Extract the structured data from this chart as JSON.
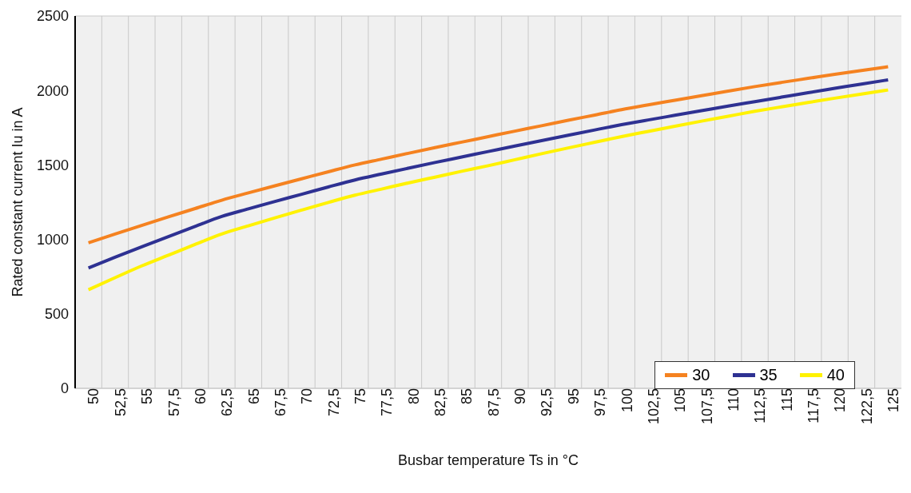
{
  "chart_data": {
    "type": "line",
    "xlabel": "Busbar temperature Ts in °C",
    "ylabel": "Rated constant current Iu in A",
    "categories": [
      "50",
      "52,5",
      "55",
      "57,5",
      "60",
      "62,5",
      "65",
      "67,5",
      "70",
      "72,5",
      "75",
      "77,5",
      "80",
      "82,5",
      "85",
      "87,5",
      "90",
      "92,5",
      "95",
      "97,5",
      "100",
      "102,5",
      "105",
      "107,5",
      "110",
      "112,5",
      "115",
      "117,5",
      "120",
      "122,5",
      "125"
    ],
    "series": [
      {
        "name": "30",
        "color": "#f58220",
        "values": [
          977,
          1036,
          1094,
          1151,
          1207,
          1263,
          1312,
          1360,
          1407,
          1454,
          1500,
          1539,
          1578,
          1616,
          1653,
          1690,
          1727,
          1763,
          1800,
          1835,
          1871,
          1903,
          1934,
          1965,
          1996,
          2026,
          2054,
          2081,
          2108,
          2134,
          2159
        ]
      },
      {
        "name": "35",
        "color": "#2e3192",
        "values": [
          808,
          880,
          950,
          1019,
          1087,
          1154,
          1205,
          1255,
          1303,
          1352,
          1399,
          1439,
          1478,
          1516,
          1553,
          1590,
          1627,
          1663,
          1699,
          1735,
          1770,
          1802,
          1833,
          1864,
          1895,
          1925,
          1955,
          1985,
          2014,
          2043,
          2071
        ]
      },
      {
        "name": "40",
        "color": "#fff200",
        "values": [
          662,
          743,
          822,
          894,
          966,
          1036,
          1091,
          1145,
          1197,
          1248,
          1297,
          1338,
          1379,
          1418,
          1457,
          1495,
          1535,
          1575,
          1614,
          1652,
          1690,
          1725,
          1760,
          1794,
          1827,
          1860,
          1890,
          1919,
          1948,
          1976,
          2003
        ]
      }
    ],
    "ylim": [
      0,
      2500
    ],
    "yticks": [
      0,
      500,
      1000,
      1500,
      2000,
      2500
    ],
    "grid": true,
    "legend": "bottom right",
    "marker": "none",
    "line_style": "solid"
  }
}
